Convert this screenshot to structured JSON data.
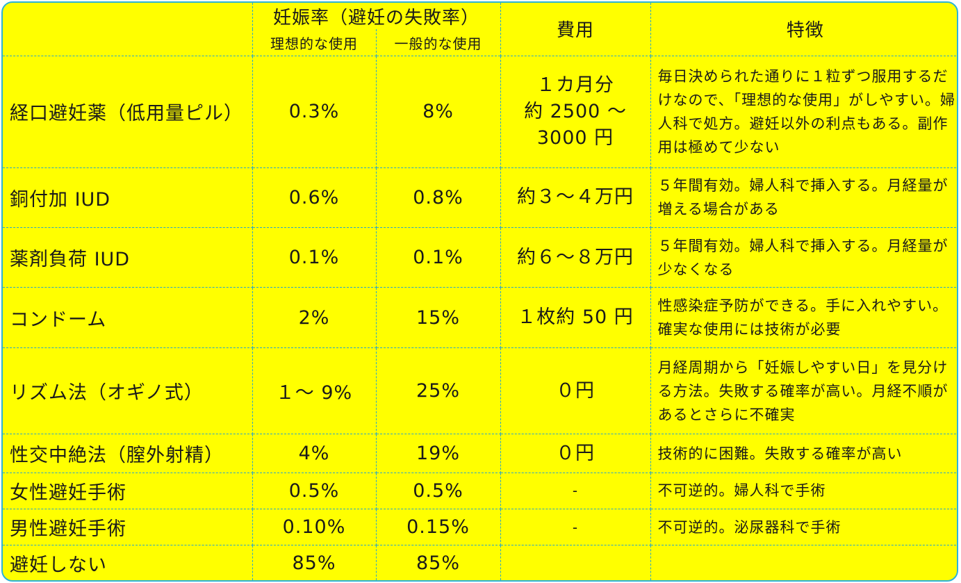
{
  "header": {
    "pregnancy_rate": "妊娠率（避妊の失敗率）",
    "ideal_use": "理想的な使用",
    "typical_use": "一般的な使用",
    "cost": "費用",
    "features": "特徴"
  },
  "rows": [
    {
      "method": "経口避妊薬（低用量ピル）",
      "ideal": "0.3%",
      "typical": "8%",
      "cost": "１カ月分\n約 2500 〜\n3000 円",
      "features": "毎日決められた通りに１粒ずつ服用するだけなので、「理想的な使用」がしやすい。婦人科で処方。避妊以外の利点もある。副作用は極めて少ない"
    },
    {
      "method": "銅付加 IUD",
      "ideal": "0.6%",
      "typical": "0.8%",
      "cost": "約３〜４万円",
      "features": "５年間有効。婦人科で挿入する。月経量が増える場合がある"
    },
    {
      "method": "薬剤負荷 IUD",
      "ideal": "0.1%",
      "typical": "0.1%",
      "cost": "約６〜８万円",
      "features": "５年間有効。婦人科で挿入する。月経量が少なくなる"
    },
    {
      "method": "コンドーム",
      "ideal": "2%",
      "typical": "15%",
      "cost": "１枚約 50 円",
      "features": "性感染症予防ができる。手に入れやすい。確実な使用には技術が必要"
    },
    {
      "method": "リズム法（オギノ式）",
      "ideal": "１〜 9%",
      "typical": "25%",
      "cost": "０円",
      "features": "月経周期から「妊娠しやすい日」を見分ける方法。失敗する確率が高い。月経不順があるとさらに不確実"
    },
    {
      "method": "性交中絶法（膣外射精）",
      "ideal": "4%",
      "typical": "19%",
      "cost": "０円",
      "features": "技術的に困難。失敗する確率が高い"
    },
    {
      "method": "女性避妊手術",
      "ideal": "0.5%",
      "typical": "0.5%",
      "cost": "-",
      "features": "不可逆的。婦人科で手術"
    },
    {
      "method": "男性避妊手術",
      "ideal": "0.10%",
      "typical": "0.15%",
      "cost": "-",
      "features": "不可逆的。泌尿器科で手術"
    },
    {
      "method": "避妊しない",
      "ideal": "85%",
      "typical": "85%",
      "cost": "",
      "features": ""
    }
  ],
  "colors": {
    "background": "#ffff00",
    "border": "#2aa6c8"
  }
}
